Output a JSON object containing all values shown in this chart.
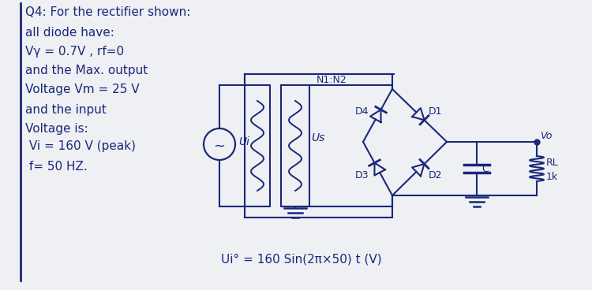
{
  "bg_color": "#eef0f4",
  "text_color": "#1a2878",
  "line_color": "#1a2878",
  "line3": "Vγ = 0.7V , rf=0",
  "bottom_eq": "Ui° = 160 Sin(2π×50) t (V)",
  "label_N1N2": "N1:N2",
  "label_Ui": "Ui",
  "label_Us": "Us",
  "label_D1": "D1",
  "label_D2": "D2",
  "label_D3": "D3",
  "label_D4": "D4",
  "label_Vo": "Vo",
  "label_RL": "RL",
  "label_C": "C",
  "label_1k": "1k"
}
